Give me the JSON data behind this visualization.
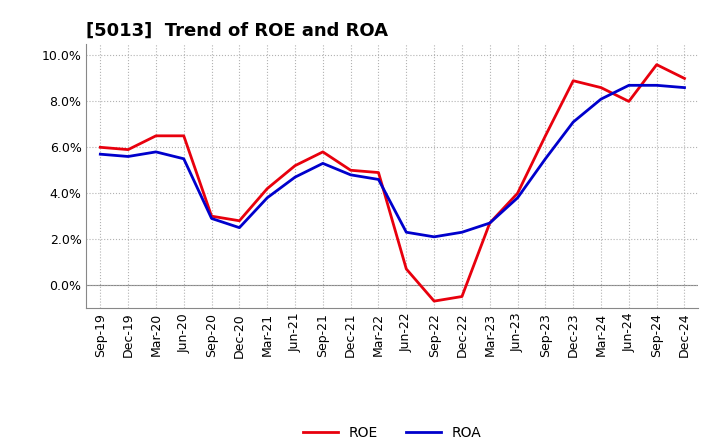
{
  "title": "[5013]  Trend of ROE and ROA",
  "x_labels": [
    "Sep-19",
    "Dec-19",
    "Mar-20",
    "Jun-20",
    "Sep-20",
    "Dec-20",
    "Mar-21",
    "Jun-21",
    "Sep-21",
    "Dec-21",
    "Mar-22",
    "Jun-22",
    "Sep-22",
    "Dec-22",
    "Mar-23",
    "Jun-23",
    "Sep-23",
    "Dec-23",
    "Mar-24",
    "Jun-24",
    "Sep-24",
    "Dec-24"
  ],
  "ROE": [
    6.0,
    5.9,
    6.5,
    6.5,
    3.0,
    2.8,
    4.2,
    5.2,
    5.8,
    5.0,
    4.9,
    0.7,
    -0.7,
    -0.5,
    2.7,
    4.0,
    6.5,
    8.9,
    8.6,
    8.0,
    9.6,
    9.0
  ],
  "ROA": [
    5.7,
    5.6,
    5.8,
    5.5,
    2.9,
    2.5,
    3.8,
    4.7,
    5.3,
    4.8,
    4.6,
    2.3,
    2.1,
    2.3,
    2.7,
    3.8,
    5.5,
    7.1,
    8.1,
    8.7,
    8.7,
    8.6
  ],
  "ROE_color": "#e8000d",
  "ROA_color": "#0000cc",
  "ylim": [
    -1.0,
    10.5
  ],
  "yticks": [
    0.0,
    2.0,
    4.0,
    6.0,
    8.0,
    10.0
  ],
  "grid_color": "#aaaaaa",
  "background_color": "#ffffff",
  "legend_ROE": "ROE",
  "legend_ROA": "ROA",
  "title_fontsize": 13,
  "tick_fontsize": 9,
  "legend_fontsize": 10
}
